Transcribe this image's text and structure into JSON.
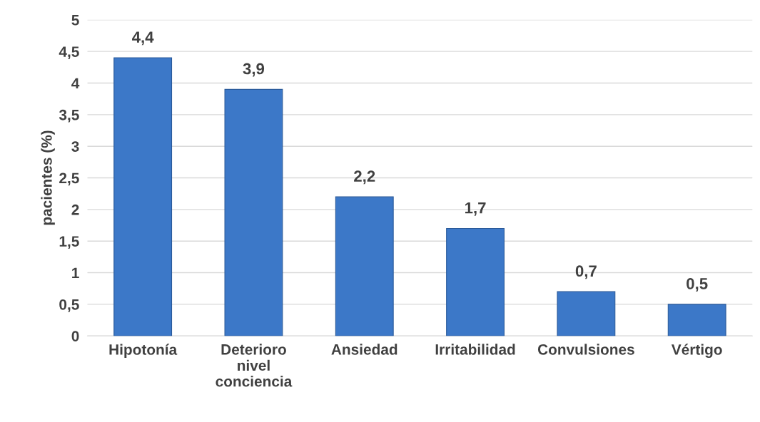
{
  "chart_data": {
    "type": "bar",
    "ylabel": "pacientes (%)",
    "categories": [
      "Hipotonía",
      "Deterioro\nnivel\nconciencia",
      "Ansiedad",
      "Irritabilidad",
      "Convulsiones",
      "Vértigo"
    ],
    "values": [
      4.4,
      3.9,
      2.2,
      1.7,
      0.7,
      0.5
    ],
    "value_labels": [
      "4,4",
      "3,9",
      "2,2",
      "1,7",
      "0,7",
      "0,5"
    ],
    "color": "#3c78c8",
    "ylim": [
      0,
      5
    ],
    "yticks": [
      0,
      {
        "value": 0.5,
        "label": "0,5"
      },
      1,
      {
        "value": 1.5,
        "label": "1,5"
      },
      2,
      {
        "value": 2.5,
        "label": "2,5"
      },
      3,
      {
        "value": 3.5,
        "label": "3,5"
      },
      4,
      {
        "value": 4.5,
        "label": "4,5"
      },
      5
    ],
    "grid": "y",
    "legend": false
  }
}
